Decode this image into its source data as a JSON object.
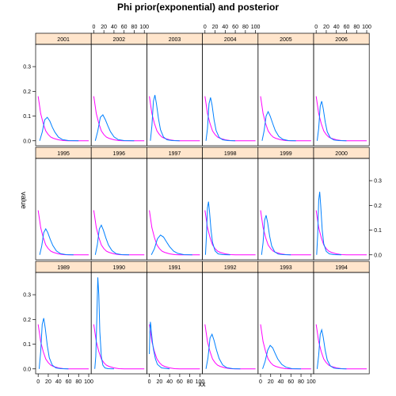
{
  "chart_data": {
    "type": "line",
    "title": "Phi prior(exponential) and posterior",
    "xlabel": "xx",
    "ylabel": "value",
    "xlim": [
      -5,
      105
    ],
    "ylim": [
      -0.02,
      0.39
    ],
    "x_ticks": [
      0,
      20,
      40,
      60,
      80,
      100
    ],
    "y_ticks": [
      0.0,
      0.1,
      0.2,
      0.3
    ],
    "x_tick_labels": [
      "0",
      "20",
      "40",
      "60",
      "80",
      "100"
    ],
    "y_tick_labels": [
      "0.0",
      "0.1",
      "0.2",
      "0.3"
    ],
    "layout_rows": [
      [
        "2001",
        "2002",
        "2003",
        "2004",
        "2005",
        "2006"
      ],
      [
        "1995",
        "1996",
        "1997",
        "1998",
        "1999",
        "2000"
      ],
      [
        "1989",
        "1990",
        "1991",
        "1992",
        "1993",
        "1994"
      ]
    ],
    "series_colors": {
      "prior": "#ff00ff",
      "posterior": "#0080ff"
    },
    "strip_color": "#ffe5cc",
    "prior": {
      "x": [
        0,
        5,
        10,
        15,
        20,
        25,
        30,
        40,
        50,
        60,
        70,
        80,
        90,
        100
      ],
      "y": [
        0.18,
        0.11,
        0.07,
        0.04,
        0.025,
        0.015,
        0.01,
        0.004,
        0.001,
        0.0,
        0.0,
        0.0,
        0.0,
        0.0
      ]
    },
    "panels": {
      "2001": {
        "x": [
          3,
          8,
          13,
          18,
          23,
          28,
          33,
          40,
          48,
          60,
          80
        ],
        "y": [
          0.0,
          0.035,
          0.085,
          0.095,
          0.08,
          0.055,
          0.035,
          0.015,
          0.005,
          0.001,
          0.0
        ]
      },
      "2002": {
        "x": [
          3,
          8,
          13,
          18,
          23,
          28,
          33,
          40,
          48,
          60,
          80
        ],
        "y": [
          0.0,
          0.04,
          0.095,
          0.105,
          0.085,
          0.06,
          0.037,
          0.016,
          0.005,
          0.001,
          0.0
        ]
      },
      "2003": {
        "x": [
          2,
          5,
          8,
          11,
          14,
          18,
          22,
          28,
          35,
          45,
          60
        ],
        "y": [
          0.0,
          0.06,
          0.16,
          0.185,
          0.15,
          0.09,
          0.045,
          0.015,
          0.004,
          0.001,
          0.0
        ]
      },
      "2004": {
        "x": [
          2,
          5,
          8,
          11,
          14,
          18,
          22,
          28,
          35,
          45,
          60
        ],
        "y": [
          0.0,
          0.05,
          0.15,
          0.175,
          0.145,
          0.085,
          0.042,
          0.014,
          0.004,
          0.001,
          0.0
        ]
      },
      "2005": {
        "x": [
          3,
          7,
          11,
          15,
          19,
          24,
          29,
          36,
          44,
          55,
          70
        ],
        "y": [
          0.0,
          0.04,
          0.1,
          0.118,
          0.1,
          0.07,
          0.042,
          0.018,
          0.006,
          0.001,
          0.0
        ]
      },
      "2006": {
        "x": [
          2,
          5,
          8,
          11,
          14,
          18,
          22,
          28,
          35,
          45,
          60
        ],
        "y": [
          0.0,
          0.05,
          0.14,
          0.16,
          0.13,
          0.075,
          0.036,
          0.012,
          0.003,
          0.001,
          0.0
        ]
      },
      "1995": {
        "x": [
          3,
          7,
          11,
          15,
          19,
          24,
          29,
          36,
          44,
          55,
          70
        ],
        "y": [
          0.0,
          0.035,
          0.09,
          0.105,
          0.09,
          0.062,
          0.038,
          0.016,
          0.005,
          0.001,
          0.0
        ]
      },
      "1996": {
        "x": [
          3,
          7,
          11,
          15,
          19,
          24,
          29,
          36,
          44,
          55,
          70
        ],
        "y": [
          0.0,
          0.04,
          0.105,
          0.12,
          0.1,
          0.068,
          0.04,
          0.017,
          0.005,
          0.001,
          0.0
        ]
      },
      "1997": {
        "x": [
          4,
          10,
          16,
          22,
          28,
          34,
          40,
          48,
          56,
          68,
          85
        ],
        "y": [
          0.0,
          0.025,
          0.065,
          0.08,
          0.072,
          0.052,
          0.033,
          0.015,
          0.006,
          0.001,
          0.0
        ]
      },
      "1998": {
        "x": [
          1,
          3,
          5,
          7,
          9,
          12,
          15,
          20,
          26,
          35,
          50
        ],
        "y": [
          0.0,
          0.08,
          0.19,
          0.215,
          0.175,
          0.1,
          0.05,
          0.016,
          0.004,
          0.001,
          0.0
        ]
      },
      "1999": {
        "x": [
          2,
          5,
          8,
          11,
          14,
          18,
          22,
          28,
          35,
          45,
          60
        ],
        "y": [
          0.0,
          0.05,
          0.14,
          0.16,
          0.13,
          0.075,
          0.036,
          0.012,
          0.003,
          0.001,
          0.0
        ]
      },
      "2000": {
        "x": [
          1,
          3,
          5,
          7,
          9,
          12,
          15,
          20,
          26,
          35,
          50
        ],
        "y": [
          0.0,
          0.08,
          0.22,
          0.255,
          0.2,
          0.1,
          0.045,
          0.014,
          0.004,
          0.001,
          0.0
        ]
      },
      "1989": {
        "x": [
          2,
          5,
          8,
          11,
          14,
          18,
          22,
          28,
          35,
          45,
          60
        ],
        "y": [
          0.0,
          0.07,
          0.18,
          0.205,
          0.165,
          0.095,
          0.045,
          0.015,
          0.004,
          0.001,
          0.0
        ]
      },
      "1990": {
        "x": [
          2,
          4,
          6,
          8,
          10,
          12,
          15,
          18,
          22,
          28,
          40
        ],
        "y": [
          0.0,
          0.05,
          0.2,
          0.37,
          0.3,
          0.15,
          0.05,
          0.015,
          0.004,
          0.001,
          0.0
        ]
      },
      "1991": {
        "x": [
          0,
          1,
          2,
          3,
          4,
          6,
          8,
          12,
          16,
          24,
          40
        ],
        "y": [
          0.06,
          0.15,
          0.19,
          0.175,
          0.15,
          0.11,
          0.08,
          0.04,
          0.018,
          0.004,
          0.0
        ]
      },
      "1992": {
        "x": [
          2,
          6,
          10,
          14,
          18,
          23,
          28,
          35,
          43,
          55,
          70
        ],
        "y": [
          0.0,
          0.045,
          0.125,
          0.14,
          0.115,
          0.075,
          0.042,
          0.016,
          0.005,
          0.001,
          0.0
        ]
      },
      "1993": {
        "x": [
          4,
          9,
          14,
          19,
          24,
          29,
          34,
          42,
          50,
          62,
          80
        ],
        "y": [
          0.0,
          0.03,
          0.075,
          0.095,
          0.085,
          0.062,
          0.04,
          0.018,
          0.007,
          0.001,
          0.0
        ]
      },
      "1994": {
        "x": [
          2,
          5,
          8,
          11,
          14,
          18,
          22,
          28,
          35,
          45,
          60
        ],
        "y": [
          0.0,
          0.055,
          0.14,
          0.158,
          0.128,
          0.074,
          0.036,
          0.012,
          0.003,
          0.001,
          0.0
        ]
      }
    }
  }
}
